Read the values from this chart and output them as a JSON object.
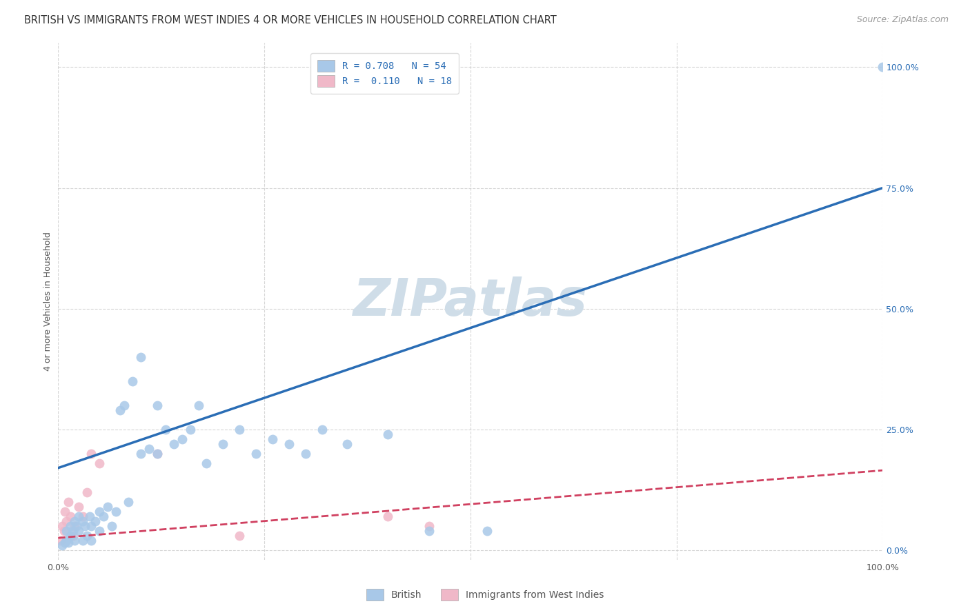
{
  "title": "BRITISH VS IMMIGRANTS FROM WEST INDIES 4 OR MORE VEHICLES IN HOUSEHOLD CORRELATION CHART",
  "source": "Source: ZipAtlas.com",
  "ylabel": "4 or more Vehicles in Household",
  "watermark": "ZIPatlas",
  "british_R": 0.708,
  "british_N": 54,
  "west_indies_R": 0.11,
  "west_indies_N": 18,
  "xlim": [
    0.0,
    1.0
  ],
  "ylim": [
    -0.02,
    1.05
  ],
  "british_color": "#a8c8e8",
  "british_line_color": "#2a6db5",
  "west_indies_color": "#f0b8c8",
  "west_indies_line_color": "#d04060",
  "brit_line_x0": 0.0,
  "brit_line_y0": 0.17,
  "brit_line_x1": 1.0,
  "brit_line_y1": 0.75,
  "wi_line_x0": 0.0,
  "wi_line_y0": 0.025,
  "wi_line_x1": 1.0,
  "wi_line_y1": 0.165,
  "british_scatter_x": [
    0.005,
    0.008,
    0.01,
    0.01,
    0.012,
    0.015,
    0.015,
    0.018,
    0.02,
    0.02,
    0.022,
    0.025,
    0.025,
    0.03,
    0.03,
    0.032,
    0.035,
    0.038,
    0.04,
    0.04,
    0.045,
    0.05,
    0.05,
    0.055,
    0.06,
    0.065,
    0.07,
    0.075,
    0.08,
    0.085,
    0.09,
    0.1,
    0.1,
    0.11,
    0.12,
    0.12,
    0.13,
    0.14,
    0.15,
    0.16,
    0.17,
    0.18,
    0.2,
    0.22,
    0.24,
    0.26,
    0.28,
    0.3,
    0.32,
    0.35,
    0.4,
    0.45,
    0.52,
    1.0
  ],
  "british_scatter_y": [
    0.01,
    0.015,
    0.02,
    0.04,
    0.015,
    0.03,
    0.05,
    0.04,
    0.06,
    0.02,
    0.05,
    0.07,
    0.04,
    0.06,
    0.02,
    0.05,
    0.03,
    0.07,
    0.05,
    0.02,
    0.06,
    0.04,
    0.08,
    0.07,
    0.09,
    0.05,
    0.08,
    0.29,
    0.3,
    0.1,
    0.35,
    0.4,
    0.2,
    0.21,
    0.3,
    0.2,
    0.25,
    0.22,
    0.23,
    0.25,
    0.3,
    0.18,
    0.22,
    0.25,
    0.2,
    0.23,
    0.22,
    0.2,
    0.25,
    0.22,
    0.24,
    0.04,
    0.04,
    1.0
  ],
  "west_indies_scatter_x": [
    0.003,
    0.005,
    0.007,
    0.008,
    0.01,
    0.012,
    0.015,
    0.018,
    0.02,
    0.025,
    0.03,
    0.035,
    0.04,
    0.05,
    0.12,
    0.22,
    0.4,
    0.45
  ],
  "west_indies_scatter_y": [
    0.02,
    0.05,
    0.04,
    0.08,
    0.06,
    0.1,
    0.07,
    0.03,
    0.05,
    0.09,
    0.07,
    0.12,
    0.2,
    0.18,
    0.2,
    0.03,
    0.07,
    0.05
  ],
  "title_fontsize": 10.5,
  "source_fontsize": 9,
  "axis_label_fontsize": 9,
  "tick_fontsize": 9,
  "legend_fontsize": 10,
  "marker_size": 100,
  "background_color": "#ffffff",
  "grid_color": "#cccccc",
  "watermark_color": "#cfdde8",
  "watermark_fontsize": 54
}
